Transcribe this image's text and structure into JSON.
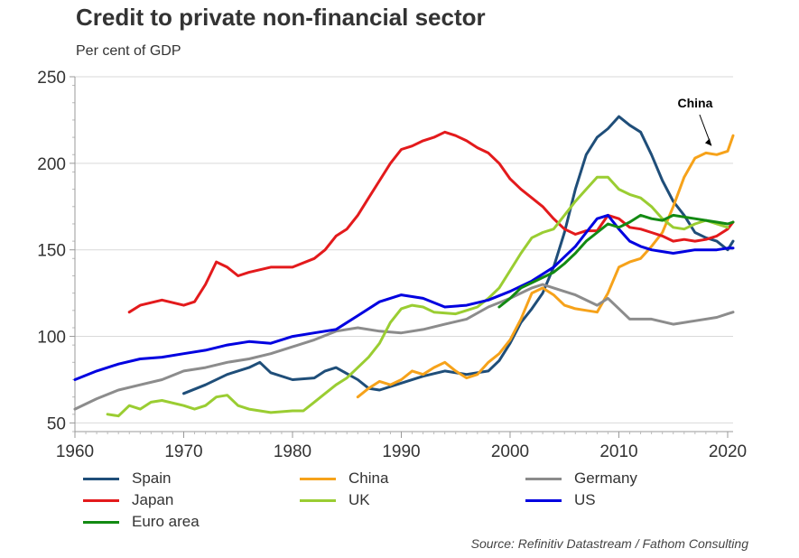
{
  "title": "Credit to private non-financial sector",
  "subtitle": "Per cent of GDP",
  "source": "Source: Refinitiv Datastream / Fathom Consulting",
  "chart_data": {
    "type": "line",
    "title": "Credit to private non-financial sector",
    "ylabel": "Per cent of GDP",
    "xlabel": "",
    "xlim": [
      1960,
      2020.5
    ],
    "ylim": [
      45,
      250
    ],
    "xticks": [
      1960,
      1970,
      1980,
      1990,
      2000,
      2010,
      2020
    ],
    "yticks": [
      50,
      100,
      150,
      200,
      250
    ],
    "grid": true,
    "annotation": {
      "text": "China",
      "x": 2019,
      "y": 207
    },
    "series": [
      {
        "name": "Spain",
        "color": "#1f4e79",
        "points": [
          [
            1970,
            67
          ],
          [
            1972,
            72
          ],
          [
            1974,
            78
          ],
          [
            1976,
            82
          ],
          [
            1977,
            85
          ],
          [
            1978,
            79
          ],
          [
            1980,
            75
          ],
          [
            1982,
            76
          ],
          [
            1983,
            80
          ],
          [
            1984,
            82
          ],
          [
            1986,
            75
          ],
          [
            1987,
            70
          ],
          [
            1988,
            69
          ],
          [
            1990,
            73
          ],
          [
            1992,
            77
          ],
          [
            1994,
            80
          ],
          [
            1996,
            78
          ],
          [
            1998,
            80
          ],
          [
            1999,
            86
          ],
          [
            2000,
            96
          ],
          [
            2001,
            108
          ],
          [
            2002,
            116
          ],
          [
            2003,
            125
          ],
          [
            2004,
            140
          ],
          [
            2005,
            160
          ],
          [
            2006,
            185
          ],
          [
            2007,
            205
          ],
          [
            2008,
            215
          ],
          [
            2009,
            220
          ],
          [
            2010,
            227
          ],
          [
            2011,
            222
          ],
          [
            2012,
            218
          ],
          [
            2013,
            205
          ],
          [
            2014,
            190
          ],
          [
            2015,
            178
          ],
          [
            2016,
            170
          ],
          [
            2017,
            160
          ],
          [
            2018,
            157
          ],
          [
            2019,
            155
          ],
          [
            2020,
            150
          ],
          [
            2020.5,
            155
          ]
        ]
      },
      {
        "name": "China",
        "color": "#f6a21a",
        "points": [
          [
            1986,
            65
          ],
          [
            1987,
            70
          ],
          [
            1988,
            74
          ],
          [
            1989,
            72
          ],
          [
            1990,
            75
          ],
          [
            1991,
            80
          ],
          [
            1992,
            78
          ],
          [
            1993,
            82
          ],
          [
            1994,
            85
          ],
          [
            1995,
            80
          ],
          [
            1996,
            76
          ],
          [
            1997,
            78
          ],
          [
            1998,
            85
          ],
          [
            1999,
            90
          ],
          [
            2000,
            98
          ],
          [
            2001,
            110
          ],
          [
            2002,
            125
          ],
          [
            2003,
            128
          ],
          [
            2004,
            124
          ],
          [
            2005,
            118
          ],
          [
            2006,
            116
          ],
          [
            2007,
            115
          ],
          [
            2008,
            114
          ],
          [
            2009,
            125
          ],
          [
            2010,
            140
          ],
          [
            2011,
            143
          ],
          [
            2012,
            145
          ],
          [
            2013,
            152
          ],
          [
            2014,
            160
          ],
          [
            2015,
            175
          ],
          [
            2016,
            192
          ],
          [
            2017,
            203
          ],
          [
            2018,
            206
          ],
          [
            2019,
            205
          ],
          [
            2020,
            207
          ],
          [
            2020.5,
            216
          ]
        ]
      },
      {
        "name": "Germany",
        "color": "#8c8c8c",
        "points": [
          [
            1960,
            58
          ],
          [
            1962,
            64
          ],
          [
            1964,
            69
          ],
          [
            1966,
            72
          ],
          [
            1968,
            75
          ],
          [
            1970,
            80
          ],
          [
            1972,
            82
          ],
          [
            1974,
            85
          ],
          [
            1976,
            87
          ],
          [
            1978,
            90
          ],
          [
            1980,
            94
          ],
          [
            1982,
            98
          ],
          [
            1984,
            103
          ],
          [
            1986,
            105
          ],
          [
            1988,
            103
          ],
          [
            1990,
            102
          ],
          [
            1992,
            104
          ],
          [
            1994,
            107
          ],
          [
            1996,
            110
          ],
          [
            1998,
            117
          ],
          [
            2000,
            122
          ],
          [
            2002,
            128
          ],
          [
            2003,
            130
          ],
          [
            2004,
            128
          ],
          [
            2006,
            124
          ],
          [
            2008,
            118
          ],
          [
            2009,
            122
          ],
          [
            2010,
            116
          ],
          [
            2011,
            110
          ],
          [
            2013,
            110
          ],
          [
            2015,
            107
          ],
          [
            2017,
            109
          ],
          [
            2019,
            111
          ],
          [
            2020,
            113
          ],
          [
            2020.5,
            114
          ]
        ]
      },
      {
        "name": "Japan",
        "color": "#e31a1c",
        "points": [
          [
            1965,
            114
          ],
          [
            1966,
            118
          ],
          [
            1968,
            121
          ],
          [
            1970,
            118
          ],
          [
            1971,
            120
          ],
          [
            1972,
            130
          ],
          [
            1973,
            143
          ],
          [
            1974,
            140
          ],
          [
            1975,
            135
          ],
          [
            1976,
            137
          ],
          [
            1978,
            140
          ],
          [
            1980,
            140
          ],
          [
            1982,
            145
          ],
          [
            1983,
            150
          ],
          [
            1984,
            158
          ],
          [
            1985,
            162
          ],
          [
            1986,
            170
          ],
          [
            1987,
            180
          ],
          [
            1988,
            190
          ],
          [
            1989,
            200
          ],
          [
            1990,
            208
          ],
          [
            1991,
            210
          ],
          [
            1992,
            213
          ],
          [
            1993,
            215
          ],
          [
            1994,
            218
          ],
          [
            1995,
            216
          ],
          [
            1996,
            213
          ],
          [
            1997,
            209
          ],
          [
            1998,
            206
          ],
          [
            1999,
            200
          ],
          [
            2000,
            191
          ],
          [
            2001,
            185
          ],
          [
            2002,
            180
          ],
          [
            2003,
            175
          ],
          [
            2004,
            168
          ],
          [
            2005,
            162
          ],
          [
            2006,
            159
          ],
          [
            2007,
            161
          ],
          [
            2008,
            161
          ],
          [
            2009,
            170
          ],
          [
            2010,
            168
          ],
          [
            2011,
            163
          ],
          [
            2012,
            162
          ],
          [
            2013,
            160
          ],
          [
            2014,
            158
          ],
          [
            2015,
            155
          ],
          [
            2016,
            156
          ],
          [
            2017,
            155
          ],
          [
            2018,
            156
          ],
          [
            2019,
            158
          ],
          [
            2020,
            162
          ],
          [
            2020.5,
            166
          ]
        ]
      },
      {
        "name": "UK",
        "color": "#9acd32",
        "points": [
          [
            1963,
            55
          ],
          [
            1964,
            54
          ],
          [
            1965,
            60
          ],
          [
            1966,
            58
          ],
          [
            1967,
            62
          ],
          [
            1968,
            63
          ],
          [
            1970,
            60
          ],
          [
            1971,
            58
          ],
          [
            1972,
            60
          ],
          [
            1973,
            65
          ],
          [
            1974,
            66
          ],
          [
            1975,
            60
          ],
          [
            1976,
            58
          ],
          [
            1978,
            56
          ],
          [
            1980,
            57
          ],
          [
            1981,
            57
          ],
          [
            1982,
            62
          ],
          [
            1983,
            67
          ],
          [
            1984,
            72
          ],
          [
            1985,
            76
          ],
          [
            1986,
            82
          ],
          [
            1987,
            88
          ],
          [
            1988,
            96
          ],
          [
            1989,
            108
          ],
          [
            1990,
            116
          ],
          [
            1991,
            118
          ],
          [
            1992,
            117
          ],
          [
            1993,
            114
          ],
          [
            1995,
            113
          ],
          [
            1996,
            115
          ],
          [
            1997,
            117
          ],
          [
            1998,
            122
          ],
          [
            1999,
            128
          ],
          [
            2000,
            138
          ],
          [
            2001,
            148
          ],
          [
            2002,
            157
          ],
          [
            2003,
            160
          ],
          [
            2004,
            162
          ],
          [
            2005,
            170
          ],
          [
            2006,
            178
          ],
          [
            2007,
            185
          ],
          [
            2008,
            192
          ],
          [
            2009,
            192
          ],
          [
            2010,
            185
          ],
          [
            2011,
            182
          ],
          [
            2012,
            180
          ],
          [
            2013,
            175
          ],
          [
            2014,
            168
          ],
          [
            2015,
            163
          ],
          [
            2016,
            162
          ],
          [
            2017,
            165
          ],
          [
            2018,
            167
          ],
          [
            2019,
            165
          ],
          [
            2020,
            163
          ]
        ]
      },
      {
        "name": "US",
        "color": "#0000e0",
        "points": [
          [
            1960,
            75
          ],
          [
            1962,
            80
          ],
          [
            1964,
            84
          ],
          [
            1966,
            87
          ],
          [
            1968,
            88
          ],
          [
            1970,
            90
          ],
          [
            1972,
            92
          ],
          [
            1974,
            95
          ],
          [
            1976,
            97
          ],
          [
            1978,
            96
          ],
          [
            1980,
            100
          ],
          [
            1982,
            102
          ],
          [
            1984,
            104
          ],
          [
            1986,
            112
          ],
          [
            1988,
            120
          ],
          [
            1990,
            124
          ],
          [
            1992,
            122
          ],
          [
            1994,
            117
          ],
          [
            1996,
            118
          ],
          [
            1998,
            121
          ],
          [
            2000,
            126
          ],
          [
            2002,
            132
          ],
          [
            2004,
            140
          ],
          [
            2006,
            152
          ],
          [
            2007,
            160
          ],
          [
            2008,
            168
          ],
          [
            2009,
            170
          ],
          [
            2010,
            162
          ],
          [
            2011,
            155
          ],
          [
            2012,
            152
          ],
          [
            2013,
            150
          ],
          [
            2014,
            149
          ],
          [
            2015,
            148
          ],
          [
            2016,
            149
          ],
          [
            2017,
            150
          ],
          [
            2018,
            150
          ],
          [
            2019,
            150
          ],
          [
            2020,
            151
          ],
          [
            2020.5,
            151
          ]
        ]
      },
      {
        "name": "Euro area",
        "color": "#138a13",
        "points": [
          [
            1999,
            117
          ],
          [
            2000,
            122
          ],
          [
            2001,
            128
          ],
          [
            2002,
            131
          ],
          [
            2003,
            134
          ],
          [
            2004,
            137
          ],
          [
            2005,
            142
          ],
          [
            2006,
            148
          ],
          [
            2007,
            155
          ],
          [
            2008,
            160
          ],
          [
            2009,
            165
          ],
          [
            2010,
            163
          ],
          [
            2011,
            166
          ],
          [
            2012,
            170
          ],
          [
            2013,
            168
          ],
          [
            2014,
            167
          ],
          [
            2015,
            170
          ],
          [
            2016,
            169
          ],
          [
            2017,
            168
          ],
          [
            2018,
            167
          ],
          [
            2019,
            166
          ],
          [
            2020,
            165
          ],
          [
            2020.5,
            166
          ]
        ]
      }
    ]
  }
}
